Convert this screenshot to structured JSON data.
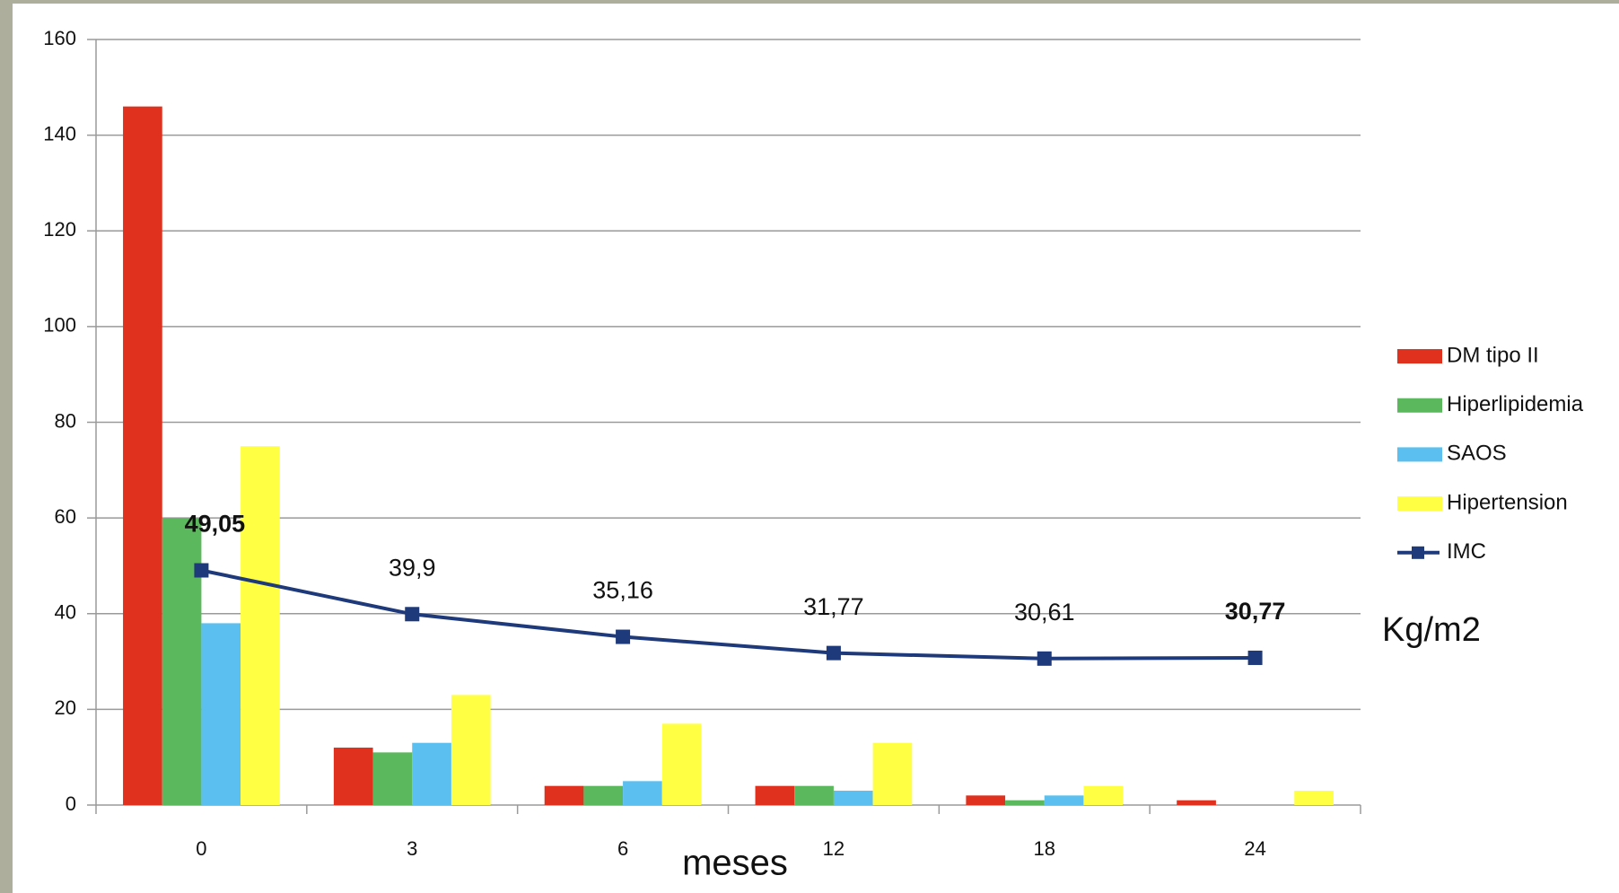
{
  "chart_data": {
    "type": "bar",
    "categories": [
      "0",
      "3",
      "6",
      "12",
      "18",
      "24"
    ],
    "series": [
      {
        "name": "DM tipo II",
        "color": "#e0301e",
        "values": [
          146,
          12,
          4,
          4,
          2,
          1
        ]
      },
      {
        "name": "Hiperlipidemia",
        "color": "#5cb85c",
        "values": [
          60,
          11,
          4,
          4,
          1,
          0
        ]
      },
      {
        "name": "SAOS",
        "color": "#5bc0f0",
        "values": [
          38,
          13,
          5,
          3,
          2,
          0
        ]
      },
      {
        "name": "Hipertension",
        "color": "#ffff44",
        "values": [
          75,
          23,
          17,
          13,
          4,
          3
        ]
      },
      {
        "name": "IMC",
        "type": "line",
        "color": "#1f3a7a",
        "values": [
          49.05,
          39.9,
          35.16,
          31.77,
          30.61,
          30.77
        ],
        "value_labels": [
          "49,05",
          "39,9",
          "35,16",
          "31,77",
          "30,61",
          "30,77"
        ]
      }
    ],
    "ylim": [
      0,
      160
    ],
    "yticks": [
      0,
      20,
      40,
      60,
      80,
      100,
      120,
      140,
      160
    ],
    "grid": true,
    "legend": "right",
    "annotations": [
      "Kg/m2"
    ],
    "x_label": "meses"
  }
}
